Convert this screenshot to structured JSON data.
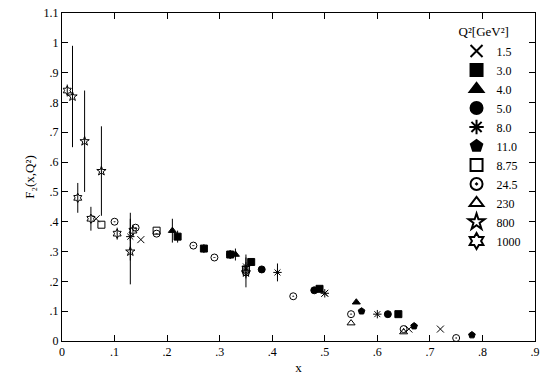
{
  "chart_data": {
    "type": "scatter",
    "x_label": "x",
    "y_label": "F₂(x,Q²)",
    "legend_title": "Q²[GeV²]",
    "legend": "upper right",
    "grid": false,
    "xlim": [
      0,
      0.9
    ],
    "xticks": [
      0,
      {
        "value": 0.1,
        "label": ".1"
      },
      {
        "value": 0.2,
        "label": ".2"
      },
      {
        "value": 0.3,
        "label": ".3"
      },
      {
        "value": 0.4,
        "label": ".4"
      },
      {
        "value": 0.5,
        "label": ".5"
      },
      {
        "value": 0.6,
        "label": ".6"
      },
      {
        "value": 0.7,
        "label": ".7"
      },
      {
        "value": 0.8,
        "label": ".8"
      },
      {
        "value": 0.9,
        "label": ".9"
      }
    ],
    "ylim": [
      0,
      1.1
    ],
    "yticks": [
      0,
      {
        "value": 0.1,
        "label": ".1"
      },
      {
        "value": 0.2,
        "label": ".2"
      },
      {
        "value": 0.3,
        "label": ".3"
      },
      {
        "value": 0.4,
        "label": ".4"
      },
      {
        "value": 0.5,
        "label": ".5"
      },
      {
        "value": 0.6,
        "label": ".6"
      },
      {
        "value": 0.7,
        "label": ".7"
      },
      {
        "value": 0.8,
        "label": ".8"
      },
      {
        "value": 0.9,
        "label": ".9"
      },
      1,
      1.1
    ],
    "series": [
      {
        "name": "1.5",
        "marker": "cross",
        "color": "#000000",
        "x": [
          0.065,
          0.15,
          0.35,
          0.5,
          0.66,
          0.72
        ],
        "values": [
          0.41,
          0.34,
          0.24,
          0.16,
          0.04,
          0.04
        ],
        "errors": [
          null,
          null,
          null,
          null,
          null,
          null
        ]
      },
      {
        "name": "3.0",
        "marker": "square",
        "color": "#000000",
        "x": [
          0.22,
          0.27,
          0.32,
          0.36,
          0.49,
          0.64
        ],
        "values": [
          0.35,
          0.31,
          0.29,
          0.265,
          0.175,
          0.09
        ],
        "errors": [
          0.02,
          0.015,
          0.015,
          null,
          null,
          null
        ]
      },
      {
        "name": "4.0",
        "marker": "triangle",
        "color": "#000000",
        "x": [
          0.21,
          0.33,
          0.56
        ],
        "values": [
          0.37,
          0.29,
          0.13
        ],
        "errors": [
          0.04,
          0.02,
          null
        ]
      },
      {
        "name": "5.0",
        "marker": "circle",
        "color": "#000000",
        "x": [
          0.32,
          0.38,
          0.48,
          0.62
        ],
        "values": [
          0.29,
          0.24,
          0.17,
          0.09
        ],
        "errors": [
          null,
          null,
          null,
          null
        ]
      },
      {
        "name": "8.0",
        "marker": "asterisk",
        "color": "#000000",
        "x": [
          0.13,
          0.35,
          0.41,
          0.5,
          0.6
        ],
        "values": [
          0.35,
          0.25,
          0.23,
          0.16,
          0.09
        ],
        "errors": [
          0.08,
          0.04,
          0.03,
          null,
          null
        ]
      },
      {
        "name": "11.0",
        "marker": "pentagon",
        "color": "#000000",
        "x": [
          0.57,
          0.67,
          0.78
        ],
        "values": [
          0.1,
          0.05,
          0.02
        ],
        "errors": [
          null,
          null,
          null
        ]
      },
      {
        "name": "8.75",
        "marker": "open square",
        "color": "#000000",
        "x": [
          0.075,
          0.18,
          0.35
        ],
        "values": [
          0.39,
          0.37,
          0.24
        ],
        "errors": [
          null,
          null,
          null
        ]
      },
      {
        "name": "24.5",
        "marker": "open circle dot",
        "color": "#000000",
        "x": [
          0.1,
          0.14,
          0.18,
          0.25,
          0.29,
          0.35,
          0.44,
          0.55,
          0.65,
          0.75
        ],
        "values": [
          0.4,
          0.38,
          0.36,
          0.32,
          0.28,
          0.23,
          0.15,
          0.09,
          0.04,
          0.01
        ],
        "errors": [
          null,
          null,
          null,
          null,
          null,
          null,
          null,
          null,
          null,
          null
        ]
      },
      {
        "name": "230",
        "marker": "open triangle",
        "color": "#000000",
        "x": [
          0.55,
          0.65
        ],
        "values": [
          0.06,
          0.03
        ],
        "errors": [
          null,
          null
        ]
      },
      {
        "name": "800",
        "marker": "open star",
        "color": "#000000",
        "x": [
          0.02,
          0.043,
          0.075,
          0.13,
          0.35
        ],
        "values": [
          0.82,
          0.67,
          0.57,
          0.3,
          0.23
        ],
        "errors": [
          0.17,
          0.17,
          0.15,
          0.11,
          0.05
        ]
      },
      {
        "name": "1000",
        "marker": "open hexagram",
        "color": "#000000",
        "x": [
          0.01,
          0.03,
          0.055,
          0.105,
          0.135
        ],
        "values": [
          0.84,
          0.48,
          0.41,
          0.36,
          0.37
        ],
        "errors": [
          0.02,
          0.05,
          0.04,
          0.02,
          0.02
        ]
      }
    ]
  }
}
